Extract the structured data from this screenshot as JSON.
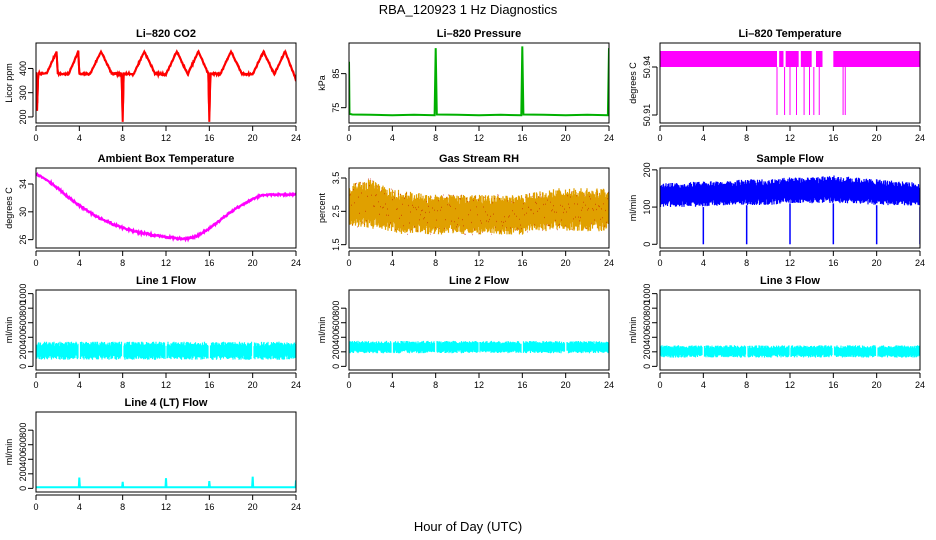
{
  "figure": {
    "title": "RBA_120923  1 Hz Diagnostics",
    "xlabel": "Hour of Day (UTC)"
  },
  "chart_data": [
    {
      "id": "co2",
      "type": "line",
      "title": "Li–820 CO2",
      "ylabel": "Licor ppm",
      "color": "#ff0000",
      "xlim": [
        0,
        24
      ],
      "ylim": [
        175,
        505
      ],
      "yticks": [
        200,
        300,
        400
      ],
      "x": [
        0.0,
        0.1,
        0.2,
        0.3,
        0.5,
        1.0,
        1.9,
        2.0,
        2.1,
        3.0,
        3.9,
        4.0,
        4.1,
        5.0,
        6.0,
        7.0,
        7.9,
        8.0,
        8.1,
        9.0,
        10.0,
        11.0,
        12.0,
        13.0,
        14.0,
        15.0,
        15.9,
        16.0,
        16.1,
        17.0,
        18.0,
        19.0,
        20.0,
        21.0,
        22.0,
        23.0,
        23.9,
        24.0
      ],
      "y": [
        385,
        225,
        380,
        382,
        378,
        380,
        470,
        380,
        378,
        376,
        470,
        380,
        376,
        378,
        470,
        378,
        376,
        180,
        380,
        376,
        470,
        378,
        376,
        470,
        376,
        470,
        378,
        180,
        380,
        376,
        470,
        378,
        376,
        470,
        376,
        470,
        365,
        350
      ]
    },
    {
      "id": "pressure",
      "type": "line",
      "title": "Li–820 Pressure",
      "ylabel": "kPa",
      "color": "#00b000",
      "xlim": [
        0,
        24
      ],
      "ylim": [
        70.5,
        94
      ],
      "yticks": [
        75,
        85
      ],
      "x": [
        0.0,
        0.05,
        0.3,
        2.0,
        4.0,
        6.0,
        7.9,
        8.0,
        8.1,
        10.0,
        12.0,
        14.0,
        15.9,
        16.0,
        16.1,
        18.0,
        20.0,
        22.0,
        23.9,
        24.0
      ],
      "y": [
        88.5,
        73.2,
        73.0,
        72.9,
        72.8,
        72.9,
        72.8,
        92.5,
        73.0,
        72.9,
        72.8,
        72.9,
        72.8,
        93.0,
        73.0,
        72.9,
        72.8,
        72.9,
        72.8,
        92.5
      ]
    },
    {
      "id": "licor_temp",
      "type": "band",
      "title": "Li–820 Temperature",
      "ylabel": "degrees C",
      "color": "#ff00ff",
      "xlim": [
        0,
        24
      ],
      "ylim": [
        50.905,
        50.955
      ],
      "yticks": [
        50.91,
        50.94
      ],
      "band_levels": [
        50.94,
        50.95
      ],
      "band_segments": [
        [
          0,
          10.8
        ],
        [
          11.0,
          11.4
        ],
        [
          11.6,
          12.8
        ],
        [
          13.0,
          14.0
        ],
        [
          14.4,
          15.0
        ],
        [
          16.0,
          24.0
        ]
      ],
      "dip_x": [
        10.8,
        11.5,
        12.0,
        12.6,
        13.3,
        13.8,
        14.2,
        14.7,
        16.9,
        17.1
      ],
      "dip_level": 50.91
    },
    {
      "id": "ambient_temp",
      "type": "line",
      "title": "Ambient Box Temperature",
      "ylabel": "degrees C",
      "color": "#ff00ff",
      "xlim": [
        0,
        24
      ],
      "ylim": [
        24.8,
        36.3
      ],
      "yticks": [
        26,
        30,
        34
      ],
      "x": [
        0,
        1,
        2,
        3,
        4,
        5,
        6,
        7,
        8,
        9,
        10,
        11,
        12,
        13,
        14,
        15,
        16,
        17,
        18,
        19,
        20,
        21,
        22,
        23,
        24
      ],
      "y": [
        35.5,
        34.6,
        33.4,
        32.1,
        30.9,
        29.9,
        29.0,
        28.3,
        27.7,
        27.2,
        26.9,
        26.6,
        26.4,
        26.2,
        26.1,
        26.6,
        27.6,
        28.8,
        30.0,
        31.0,
        31.9,
        32.4,
        32.5,
        32.5,
        32.5
      ]
    },
    {
      "id": "rh",
      "type": "noise_band",
      "title": "Gas Stream RH",
      "ylabel": "percent",
      "color": "#e0a000",
      "color2": "#c00000",
      "xlim": [
        0,
        24
      ],
      "ylim": [
        1.4,
        3.8
      ],
      "yticks": [
        1.5,
        2.5,
        3.5
      ],
      "x": [
        0,
        1,
        2,
        3,
        4,
        5,
        6,
        7,
        8,
        9,
        10,
        11,
        12,
        13,
        14,
        15,
        16,
        17,
        18,
        19,
        20,
        21,
        22,
        23,
        24
      ],
      "low": [
        2.1,
        2.0,
        2.0,
        1.9,
        1.9,
        1.8,
        1.8,
        1.8,
        1.8,
        1.8,
        1.8,
        1.8,
        1.8,
        1.8,
        1.8,
        1.8,
        1.8,
        1.9,
        1.9,
        1.9,
        1.9,
        1.9,
        1.9,
        1.9,
        1.9
      ],
      "high": [
        3.3,
        3.4,
        3.5,
        3.3,
        3.2,
        3.1,
        3.1,
        3.0,
        3.0,
        3.0,
        3.0,
        3.0,
        3.0,
        3.0,
        3.0,
        3.0,
        3.0,
        3.1,
        3.1,
        3.2,
        3.2,
        3.2,
        3.2,
        3.2,
        3.2
      ]
    },
    {
      "id": "sample_flow",
      "type": "noise_band",
      "title": "Sample Flow",
      "ylabel": "ml/min",
      "color": "#0000ff",
      "xlim": [
        0,
        24
      ],
      "ylim": [
        -10,
        205
      ],
      "yticks": [
        0,
        100,
        200
      ],
      "x": [
        0,
        2,
        4,
        6,
        8,
        10,
        12,
        14,
        16,
        18,
        20,
        22,
        24
      ],
      "low": [
        100,
        100,
        100,
        105,
        105,
        105,
        110,
        110,
        110,
        110,
        105,
        105,
        100
      ],
      "high": [
        165,
        165,
        170,
        170,
        175,
        175,
        180,
        180,
        185,
        180,
        175,
        170,
        165
      ],
      "dips": [
        4,
        8,
        12,
        16,
        20,
        24
      ],
      "dip_value": 0
    },
    {
      "id": "line1",
      "type": "noise_band",
      "title": "Line 1 Flow",
      "ylabel": "ml/min",
      "color": "#00ffff",
      "xlim": [
        0,
        24
      ],
      "ylim": [
        -50,
        1050
      ],
      "yticks": [
        0,
        200,
        400,
        600,
        800,
        1000
      ],
      "x": [
        0,
        24
      ],
      "low": [
        90,
        90
      ],
      "high": [
        340,
        340
      ],
      "gaps": [
        4,
        8,
        12,
        16,
        20
      ]
    },
    {
      "id": "line2",
      "type": "noise_band",
      "title": "Line 2 Flow",
      "ylabel": "ml/min",
      "color": "#00ffff",
      "xlim": [
        0,
        24
      ],
      "ylim": [
        -50,
        1050
      ],
      "yticks": [
        0,
        200,
        400,
        600,
        800
      ],
      "x": [
        0,
        24
      ],
      "low": [
        180,
        180
      ],
      "high": [
        350,
        350
      ],
      "gaps": [
        4,
        8,
        12,
        16,
        20
      ]
    },
    {
      "id": "line3",
      "type": "noise_band",
      "title": "Line 3 Flow",
      "ylabel": "ml/min",
      "color": "#00ffff",
      "xlim": [
        0,
        24
      ],
      "ylim": [
        -50,
        1050
      ],
      "yticks": [
        0,
        200,
        400,
        600,
        800,
        1000
      ],
      "x": [
        0,
        24
      ],
      "low": [
        120,
        120
      ],
      "high": [
        290,
        290
      ],
      "gaps": [
        4,
        8,
        12,
        16,
        20
      ]
    },
    {
      "id": "line4",
      "type": "line",
      "title": "Line 4 (LT) Flow",
      "ylabel": "ml/min",
      "color": "#00ffff",
      "xlim": [
        0,
        24
      ],
      "ylim": [
        -50,
        1050
      ],
      "yticks": [
        0,
        200,
        400,
        600,
        800
      ],
      "x": [
        0,
        3.95,
        4.0,
        4.05,
        7.95,
        8.0,
        8.05,
        11.95,
        12.0,
        12.05,
        15.95,
        16.0,
        16.05,
        19.95,
        20.0,
        20.05,
        23.95,
        24.0
      ],
      "y": [
        15,
        15,
        150,
        15,
        15,
        90,
        15,
        15,
        140,
        15,
        15,
        100,
        15,
        15,
        160,
        15,
        15,
        110
      ]
    }
  ],
  "xticks": [
    0,
    4,
    8,
    12,
    16,
    20,
    24
  ]
}
